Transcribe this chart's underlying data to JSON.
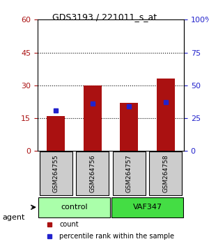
{
  "title": "GDS3193 / 221011_s_at",
  "samples": [
    "GSM264755",
    "GSM264756",
    "GSM264757",
    "GSM264758"
  ],
  "counts": [
    16,
    30,
    22,
    33
  ],
  "percentiles": [
    31,
    36,
    34,
    37
  ],
  "ylim_left": [
    0,
    60
  ],
  "ylim_right": [
    0,
    100
  ],
  "yticks_left": [
    0,
    15,
    30,
    45,
    60
  ],
  "yticks_right": [
    0,
    25,
    50,
    75,
    100
  ],
  "bar_color": "#aa1111",
  "dot_color": "#2222cc",
  "groups": [
    {
      "label": "control",
      "samples": [
        0,
        1
      ],
      "color": "#aaffaa"
    },
    {
      "label": "VAF347",
      "samples": [
        2,
        3
      ],
      "color": "#44dd44"
    }
  ],
  "legend_items": [
    {
      "label": "count",
      "color": "#aa1111"
    },
    {
      "label": "percentile rank within the sample",
      "color": "#2222cc"
    }
  ],
  "agent_label": "agent",
  "background_color": "#ffffff",
  "sample_box_color": "#cccccc",
  "grid_color": "#000000",
  "dotted_lines_at": [
    15,
    30,
    45
  ]
}
